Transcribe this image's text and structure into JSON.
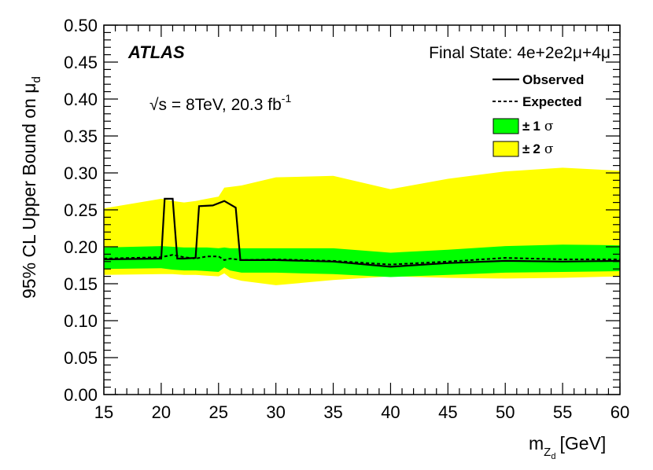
{
  "chart_data": {
    "type": "line",
    "experiment": "ATLAS",
    "energy_label": "√s = 8TeV, 20.3 fb",
    "energy_sup": "-1",
    "final_state_label": "Final State: 4e+2e2μ+4μ",
    "xlabel": "m",
    "xlabel_sub": "Z",
    "xlabel_subsub": "d",
    "xlabel_unit": "[GeV]",
    "ylabel": "95% CL Upper Bound on μ",
    "ylabel_sub": "d",
    "xlim": [
      15,
      60
    ],
    "ylim": [
      0,
      0.5
    ],
    "x_ticks": [
      15,
      20,
      25,
      30,
      35,
      40,
      45,
      50,
      55,
      60
    ],
    "y_ticks": [
      "0.00",
      "0.05",
      "0.10",
      "0.15",
      "0.20",
      "0.25",
      "0.30",
      "0.35",
      "0.40",
      "0.45",
      "0.50"
    ],
    "legend": {
      "observed": "Observed",
      "expected": "Expected",
      "band1_pm": "±",
      "band1_n": "1",
      "band1_sigma": "σ",
      "band2_pm": "±",
      "band2_n": "2",
      "band2_sigma": "σ"
    },
    "colors": {
      "band1": "#00ff00",
      "band2": "#ffff00",
      "line": "#000000"
    },
    "band2": {
      "x": [
        15,
        20,
        21,
        22,
        23,
        24,
        25,
        25.5,
        26,
        27,
        30,
        35,
        40,
        45,
        50,
        55,
        60
      ],
      "upper": [
        0.252,
        0.265,
        0.262,
        0.26,
        0.262,
        0.265,
        0.268,
        0.28,
        0.281,
        0.283,
        0.294,
        0.296,
        0.278,
        0.292,
        0.302,
        0.307,
        0.303
      ],
      "lower": [
        0.162,
        0.163,
        0.163,
        0.162,
        0.162,
        0.161,
        0.16,
        0.164,
        0.158,
        0.154,
        0.148,
        0.155,
        0.16,
        0.158,
        0.157,
        0.158,
        0.16
      ]
    },
    "band1": {
      "x": [
        15,
        20,
        21,
        22,
        23,
        24,
        25,
        25.5,
        26,
        27,
        30,
        35,
        40,
        45,
        50,
        55,
        60
      ],
      "upper": [
        0.199,
        0.201,
        0.2,
        0.199,
        0.199,
        0.199,
        0.198,
        0.199,
        0.198,
        0.198,
        0.198,
        0.198,
        0.192,
        0.196,
        0.201,
        0.203,
        0.202
      ],
      "lower": [
        0.17,
        0.171,
        0.169,
        0.168,
        0.168,
        0.167,
        0.166,
        0.172,
        0.168,
        0.165,
        0.165,
        0.163,
        0.159,
        0.162,
        0.165,
        0.166,
        0.167
      ]
    },
    "observed": {
      "x": [
        15,
        20,
        20.3,
        21.0,
        21.4,
        22.0,
        23.0,
        23.3,
        24.5,
        25.5,
        26.5,
        26.9,
        30,
        35,
        40,
        45,
        50,
        55,
        60
      ],
      "y": [
        0.183,
        0.184,
        0.265,
        0.265,
        0.184,
        0.184,
        0.185,
        0.255,
        0.256,
        0.262,
        0.253,
        0.182,
        0.182,
        0.18,
        0.173,
        0.178,
        0.181,
        0.18,
        0.181
      ]
    },
    "expected": {
      "x": [
        15,
        20,
        21,
        22,
        23,
        24,
        25,
        25.5,
        26,
        27,
        30,
        35,
        40,
        45,
        50,
        55,
        60
      ],
      "y": [
        0.184,
        0.186,
        0.189,
        0.186,
        0.184,
        0.187,
        0.187,
        0.182,
        0.184,
        0.182,
        0.183,
        0.181,
        0.176,
        0.18,
        0.185,
        0.183,
        0.183
      ]
    }
  }
}
